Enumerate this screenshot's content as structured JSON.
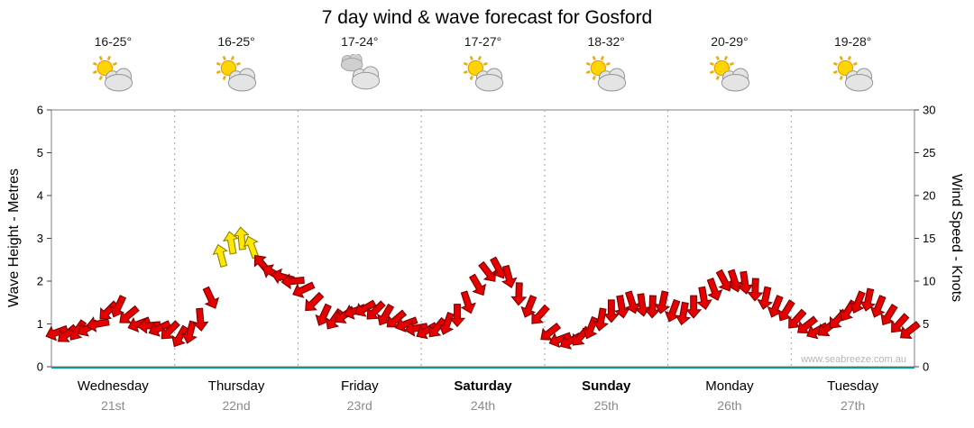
{
  "title": "7 day wind & wave forecast for Gosford",
  "watermark": "www.seabreeze.com.au",
  "chart_data": {
    "type": "scatter",
    "title": "7 day wind & wave forecast for Gosford",
    "y_left": {
      "label": "Wave Height - Metres",
      "min": 0,
      "max": 6,
      "ticks": [
        0,
        1,
        2,
        3,
        4,
        5,
        6
      ]
    },
    "y_right": {
      "label": "Wind Speed - Knots",
      "min": 0,
      "max": 30,
      "ticks": [
        0,
        5,
        10,
        15,
        20,
        25,
        30
      ]
    },
    "legend": "none",
    "grid": {
      "day_separators": "dotted-vertical",
      "baseline_color": "#009b9b"
    },
    "days": [
      {
        "name": "Wednesday",
        "date": "21st",
        "temp": "16-25°",
        "icon": "partly-cloudy",
        "bold": false
      },
      {
        "name": "Thursday",
        "date": "22nd",
        "temp": "16-25°",
        "icon": "partly-cloudy",
        "bold": false
      },
      {
        "name": "Friday",
        "date": "23rd",
        "temp": "17-24°",
        "icon": "cloudy",
        "bold": false
      },
      {
        "name": "Saturday",
        "date": "24th",
        "temp": "17-27°",
        "icon": "partly-cloudy",
        "bold": true
      },
      {
        "name": "Sunday",
        "date": "25th",
        "temp": "18-32°",
        "icon": "partly-cloudy",
        "bold": true
      },
      {
        "name": "Monday",
        "date": "26th",
        "temp": "20-29°",
        "icon": "partly-cloudy",
        "bold": false
      },
      {
        "name": "Tuesday",
        "date": "27th",
        "temp": "19-28°",
        "icon": "partly-cloudy",
        "bold": false
      }
    ],
    "series": {
      "name": "wind-speed-arrows",
      "units": "knots",
      "points_per_day": 12,
      "values_knots": [
        4.0,
        3.8,
        4.2,
        4.5,
        5.0,
        6.5,
        7.0,
        6.0,
        5.0,
        4.8,
        4.5,
        4.2,
        3.5,
        4.0,
        5.5,
        8.0,
        13.0,
        14.5,
        15.0,
        14.0,
        12.0,
        11.0,
        10.5,
        10.0,
        9.0,
        7.5,
        6.0,
        5.5,
        6.0,
        6.5,
        6.8,
        6.5,
        6.0,
        5.5,
        5.0,
        4.5,
        4.2,
        4.5,
        5.0,
        6.0,
        7.5,
        9.5,
        11.0,
        11.5,
        10.5,
        8.5,
        7.0,
        6.0,
        4.0,
        3.2,
        3.0,
        3.5,
        4.5,
        5.5,
        6.5,
        7.0,
        7.5,
        7.2,
        7.0,
        7.5,
        6.5,
        6.2,
        7.0,
        8.0,
        9.0,
        10.0,
        10.0,
        9.8,
        9.0,
        8.0,
        7.0,
        6.5,
        5.5,
        4.8,
        4.2,
        4.5,
        5.5,
        6.5,
        7.5,
        7.8,
        7.0,
        6.0,
        5.0,
        4.2
      ],
      "directions_deg": [
        250,
        230,
        215,
        240,
        260,
        225,
        205,
        230,
        250,
        265,
        245,
        225,
        210,
        195,
        175,
        155,
        345,
        350,
        355,
        340,
        320,
        300,
        285,
        265,
        245,
        225,
        205,
        215,
        235,
        250,
        240,
        225,
        210,
        230,
        250,
        260,
        240,
        220,
        200,
        180,
        162,
        150,
        142,
        152,
        165,
        182,
        202,
        222,
        232,
        250,
        242,
        222,
        202,
        190,
        180,
        170,
        162,
        172,
        182,
        192,
        200,
        190,
        180,
        170,
        160,
        152,
        162,
        172,
        182,
        192,
        202,
        212,
        222,
        232,
        242,
        232,
        222,
        212,
        202,
        192,
        202,
        212,
        222,
        232
      ],
      "colors": {
        "normal": "#e60000",
        "normal_stroke": "#7a0000",
        "strong": "#ffe800",
        "strong_stroke": "#8f8400",
        "strong_threshold_knots": 13
      }
    }
  }
}
